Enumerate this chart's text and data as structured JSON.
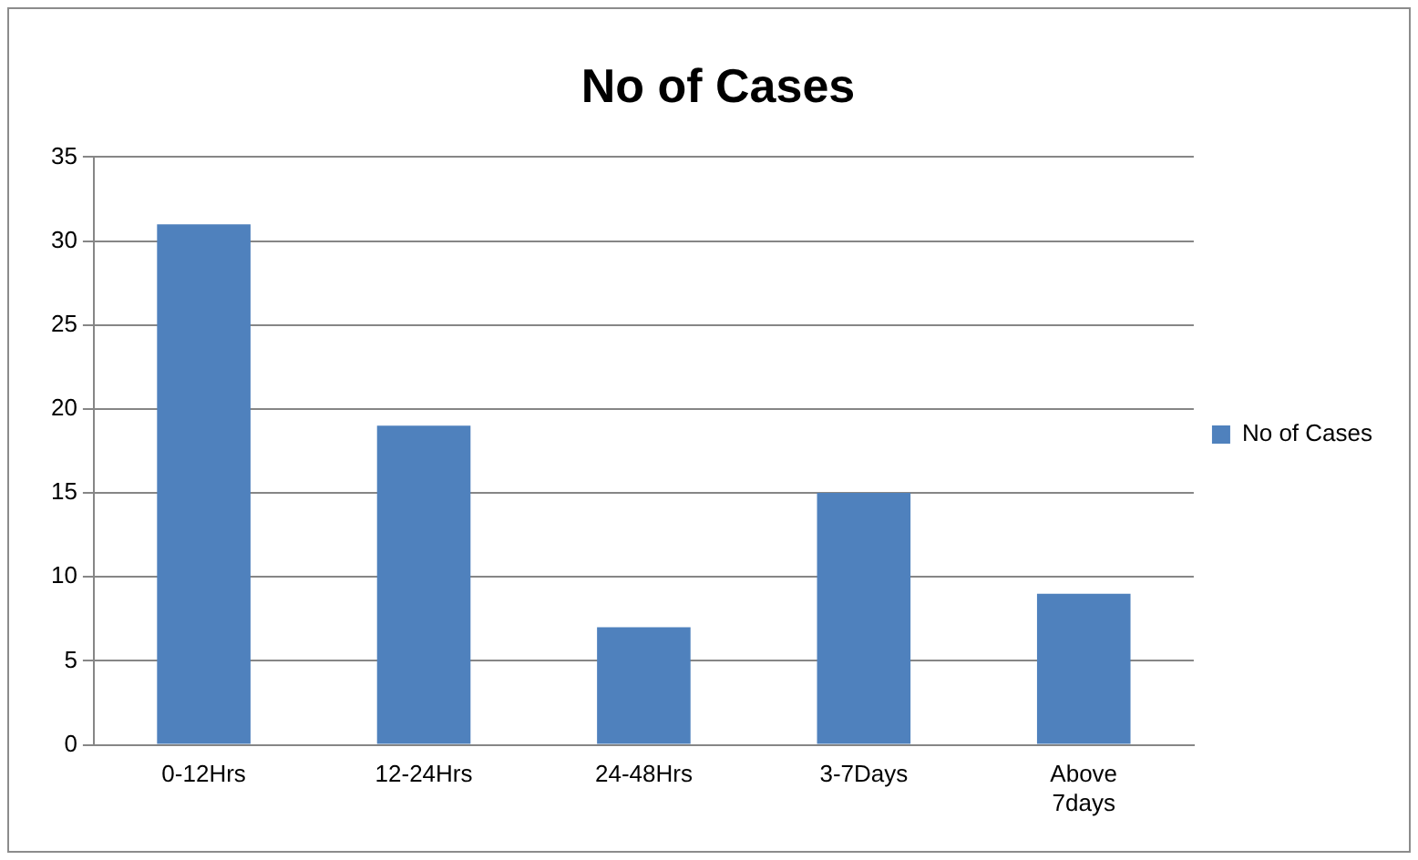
{
  "chart_data": {
    "type": "bar",
    "title": "No of Cases",
    "categories": [
      "0-12Hrs",
      "12-24Hrs",
      "24-48Hrs",
      "3-7Days",
      "Above 7days"
    ],
    "series": [
      {
        "name": "No of Cases",
        "color": "#4f81bd",
        "values": [
          31,
          19,
          7,
          15,
          9
        ]
      }
    ],
    "ylim": [
      0,
      35
    ],
    "yticks": [
      0,
      5,
      10,
      15,
      20,
      25,
      30,
      35
    ],
    "grid": "y",
    "legend": "right"
  }
}
